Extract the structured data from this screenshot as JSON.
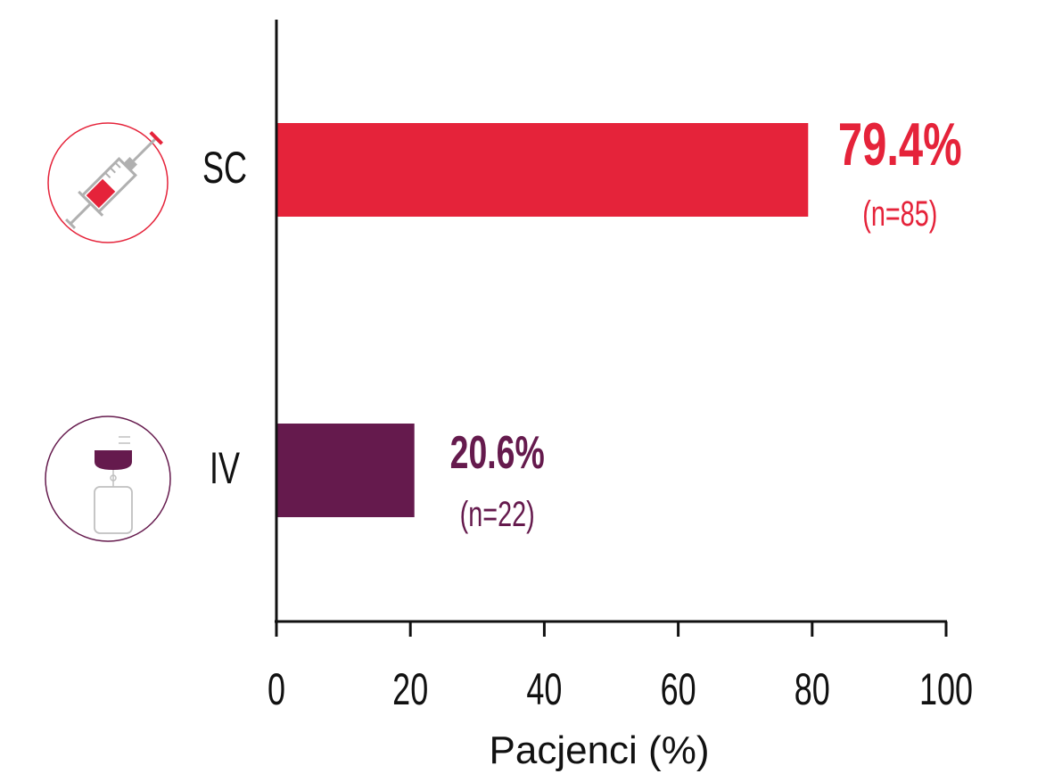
{
  "chart_data": {
    "type": "bar",
    "orientation": "horizontal",
    "categories": [
      "SC",
      "IV"
    ],
    "values": [
      79.4,
      20.6
    ],
    "value_labels": [
      "79.4%",
      "20.6%"
    ],
    "count_labels": [
      "(n=85)",
      "(n=22)"
    ],
    "colors": [
      "#e5233a",
      "#651a4d"
    ],
    "category_icons": [
      "syringe-icon",
      "iv-bag-icon"
    ],
    "xlabel": "Pacjenci (%)",
    "xlim": [
      0,
      100
    ],
    "xticks": [
      0,
      20,
      40,
      60,
      80,
      100
    ],
    "xtick_labels": [
      "0",
      "20",
      "40",
      "60",
      "80",
      "100"
    ],
    "grid": false,
    "legend": "none"
  }
}
